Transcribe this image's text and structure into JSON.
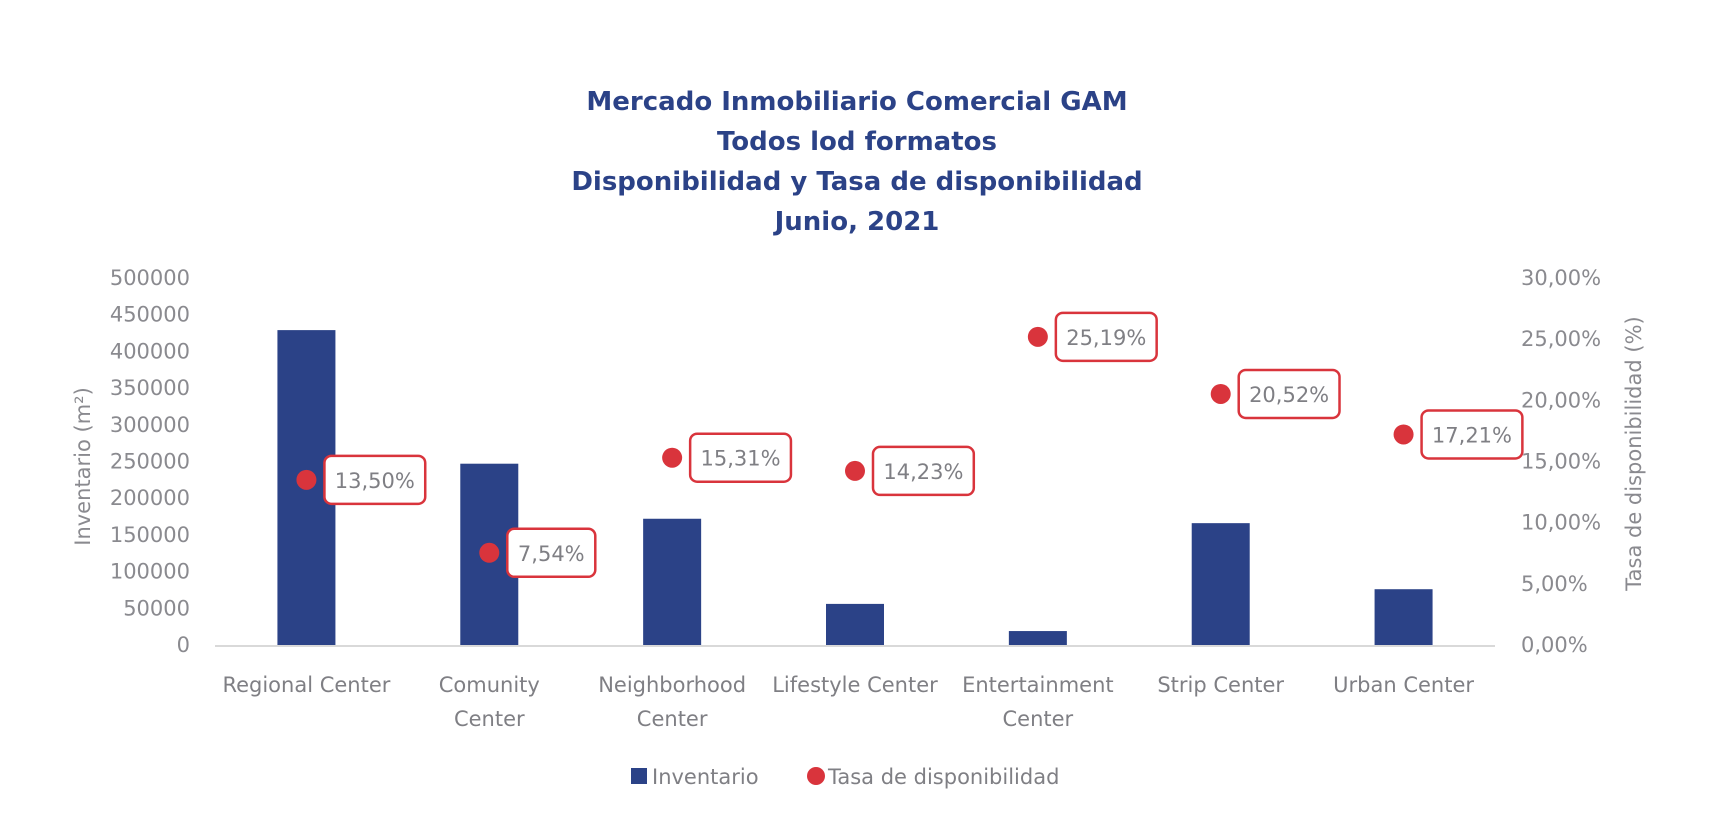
{
  "chart_data": {
    "type": "bar",
    "title": [
      "Mercado Inmobiliario Comercial GAM",
      "Todos lod formatos",
      "Disponibilidad y Tasa de disponibilidad",
      "Junio, 2021"
    ],
    "categories": [
      [
        "Regional Center"
      ],
      [
        "Comunity",
        "Center"
      ],
      [
        "Neighborhood",
        "Center"
      ],
      [
        "Lifestyle Center"
      ],
      [
        "Entertainment",
        "Center"
      ],
      [
        "Strip Center"
      ],
      [
        "Urban Center"
      ]
    ],
    "series": [
      {
        "name": "Inventario",
        "type": "bar",
        "axis": "left",
        "color": "#2b4287",
        "values": [
          429000,
          247000,
          172000,
          56000,
          19000,
          166000,
          76000
        ]
      },
      {
        "name": "Tasa de disponibilidad",
        "type": "scatter",
        "axis": "right",
        "color": "#d9343c",
        "values": [
          13.5,
          7.54,
          15.31,
          14.23,
          25.19,
          20.52,
          17.21
        ],
        "labels": [
          "13,50%",
          "7,54%",
          "15,31%",
          "14,23%",
          "25,19%",
          "20,52%",
          "17,21%"
        ]
      }
    ],
    "y_left": {
      "label": "Inventario (m²)",
      "lim": [
        0,
        500000
      ],
      "ticks": [
        "0",
        "50000",
        "100000",
        "150000",
        "200000",
        "250000",
        "300000",
        "350000",
        "400000",
        "450000",
        "500000"
      ]
    },
    "y_right": {
      "label": "Tasa de disponibilidad (%)",
      "lim": [
        0,
        30
      ],
      "ticks": [
        "0,00%",
        "5,00%",
        "10,00%",
        "15,00%",
        "20,00%",
        "25,00%",
        "30,00%"
      ]
    },
    "grid": false,
    "legend": {
      "position": "bottom-center",
      "entries": [
        "Inventario",
        "Tasa de disponibilidad"
      ]
    }
  }
}
